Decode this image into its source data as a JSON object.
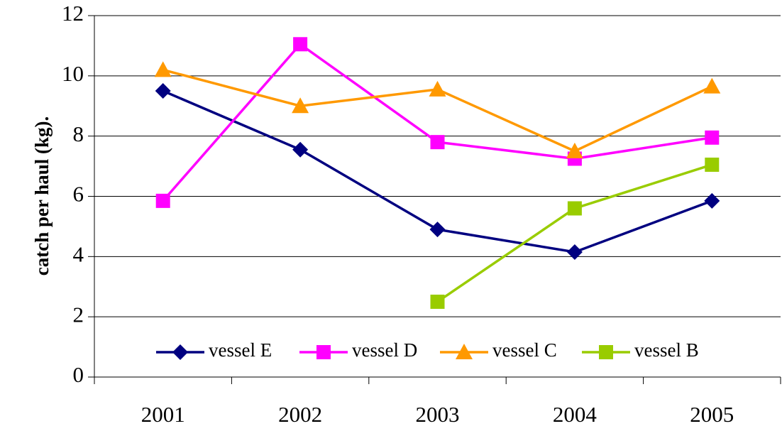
{
  "chart_data": {
    "type": "line",
    "y_label": "catch per haul (kg).",
    "categories": [
      "2001",
      "2002",
      "2003",
      "2004",
      "2005"
    ],
    "series": [
      {
        "name": "vessel E",
        "color": "#000080",
        "marker": "diamond",
        "values": [
          9.5,
          7.55,
          4.9,
          4.15,
          5.85
        ]
      },
      {
        "name": "vessel D",
        "color": "#ff00ff",
        "marker": "square",
        "values": [
          5.85,
          11.05,
          7.8,
          7.25,
          7.95
        ]
      },
      {
        "name": "vessel C",
        "color": "#ff9900",
        "marker": "triangle",
        "values": [
          10.2,
          9.0,
          9.55,
          7.5,
          9.65
        ]
      },
      {
        "name": "vessel B",
        "color": "#99cc00",
        "marker": "square",
        "values": [
          null,
          null,
          2.5,
          5.6,
          7.05
        ]
      }
    ],
    "ylim": [
      0,
      12
    ],
    "yticks": [
      0,
      2,
      4,
      6,
      8,
      10,
      12
    ],
    "grid": true,
    "legend": "bottom"
  }
}
